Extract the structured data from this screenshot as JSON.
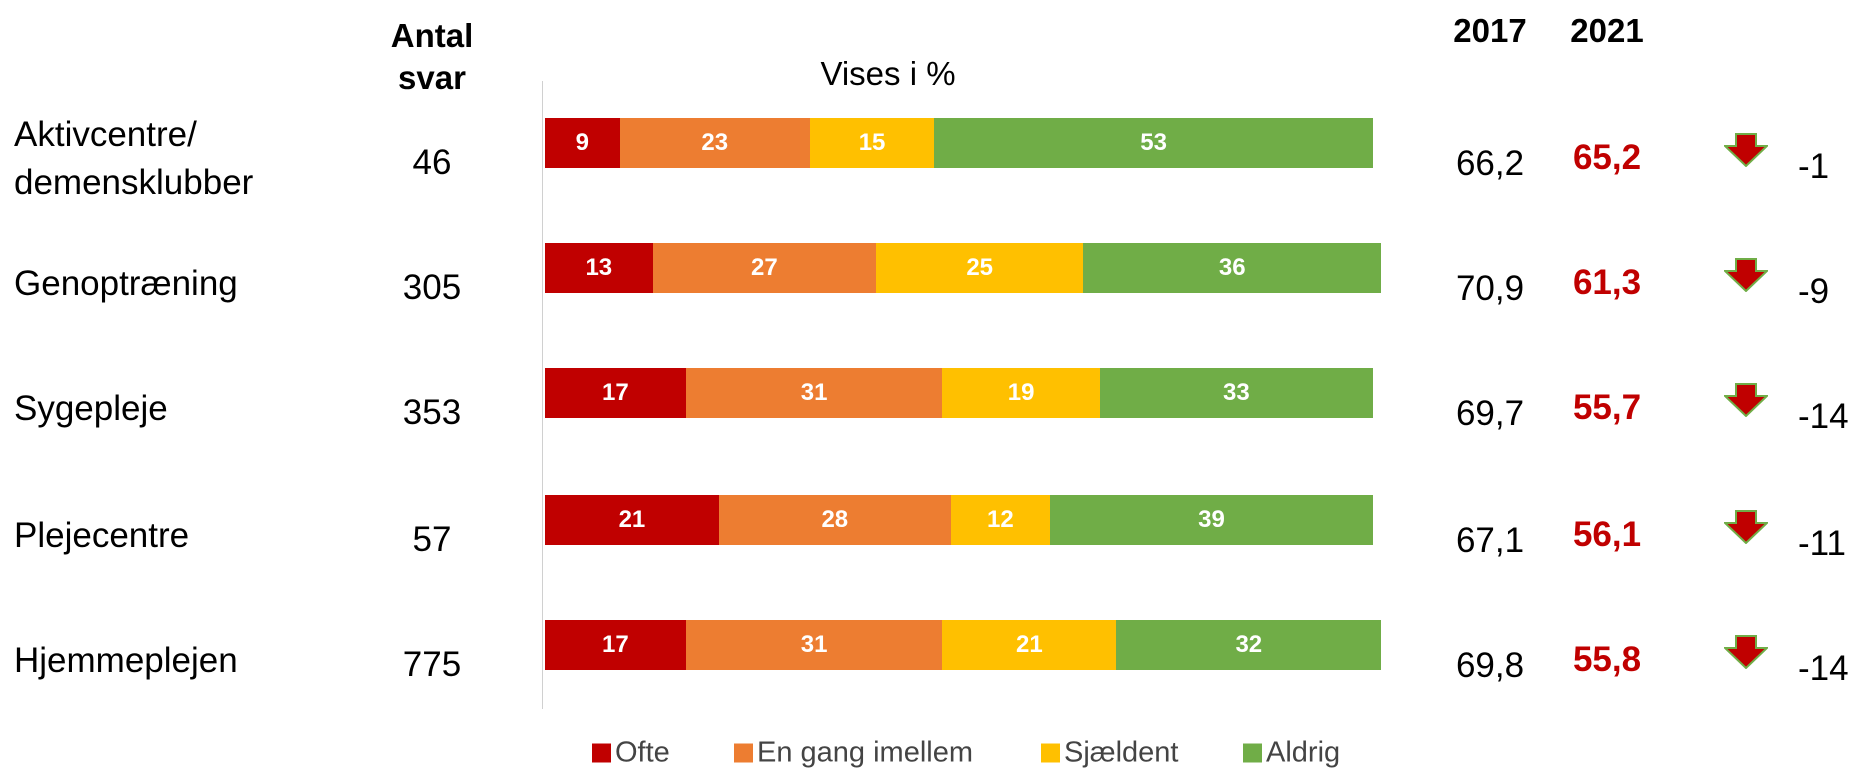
{
  "chart_data": {
    "type": "bar",
    "orientation": "horizontal",
    "stacked": true,
    "subtitle": "Vises i %",
    "categories": [
      "Aktivcentre/ demensklubber",
      "Genoptræning",
      "Sygepleje",
      "Plejecentre",
      "Hjemmeplejen"
    ],
    "series": [
      {
        "name": "Ofte",
        "color": "#c00000",
        "values": [
          9,
          13,
          17,
          21,
          17
        ]
      },
      {
        "name": "En gang imellem",
        "color": "#ed7d31",
        "values": [
          23,
          27,
          31,
          28,
          31
        ]
      },
      {
        "name": "Sjældent",
        "color": "#ffc000",
        "values": [
          15,
          25,
          19,
          12,
          21
        ]
      },
      {
        "name": "Aldrig",
        "color": "#70ad47",
        "values": [
          53,
          36,
          33,
          39,
          32
        ]
      }
    ],
    "xlim": [
      0,
      100
    ],
    "columns": [
      {
        "header": "Antal svar",
        "values": [
          46,
          305,
          353,
          57,
          775
        ]
      },
      {
        "header": "2017",
        "values": [
          66.2,
          70.9,
          69.7,
          67.1,
          69.8
        ],
        "value_labels": [
          "66,2",
          "70,9",
          "69,7",
          "67,1",
          "69,8"
        ]
      },
      {
        "header": "2021",
        "values": [
          65.2,
          61.3,
          55.7,
          56.1,
          55.8
        ],
        "value_labels": [
          "65,2",
          "61,3",
          "55,7",
          "56,1",
          "55,8"
        ],
        "color": "#c00000",
        "bold": true
      },
      {
        "values": [
          -1,
          -9,
          -14,
          -11,
          -14
        ]
      }
    ]
  }
}
